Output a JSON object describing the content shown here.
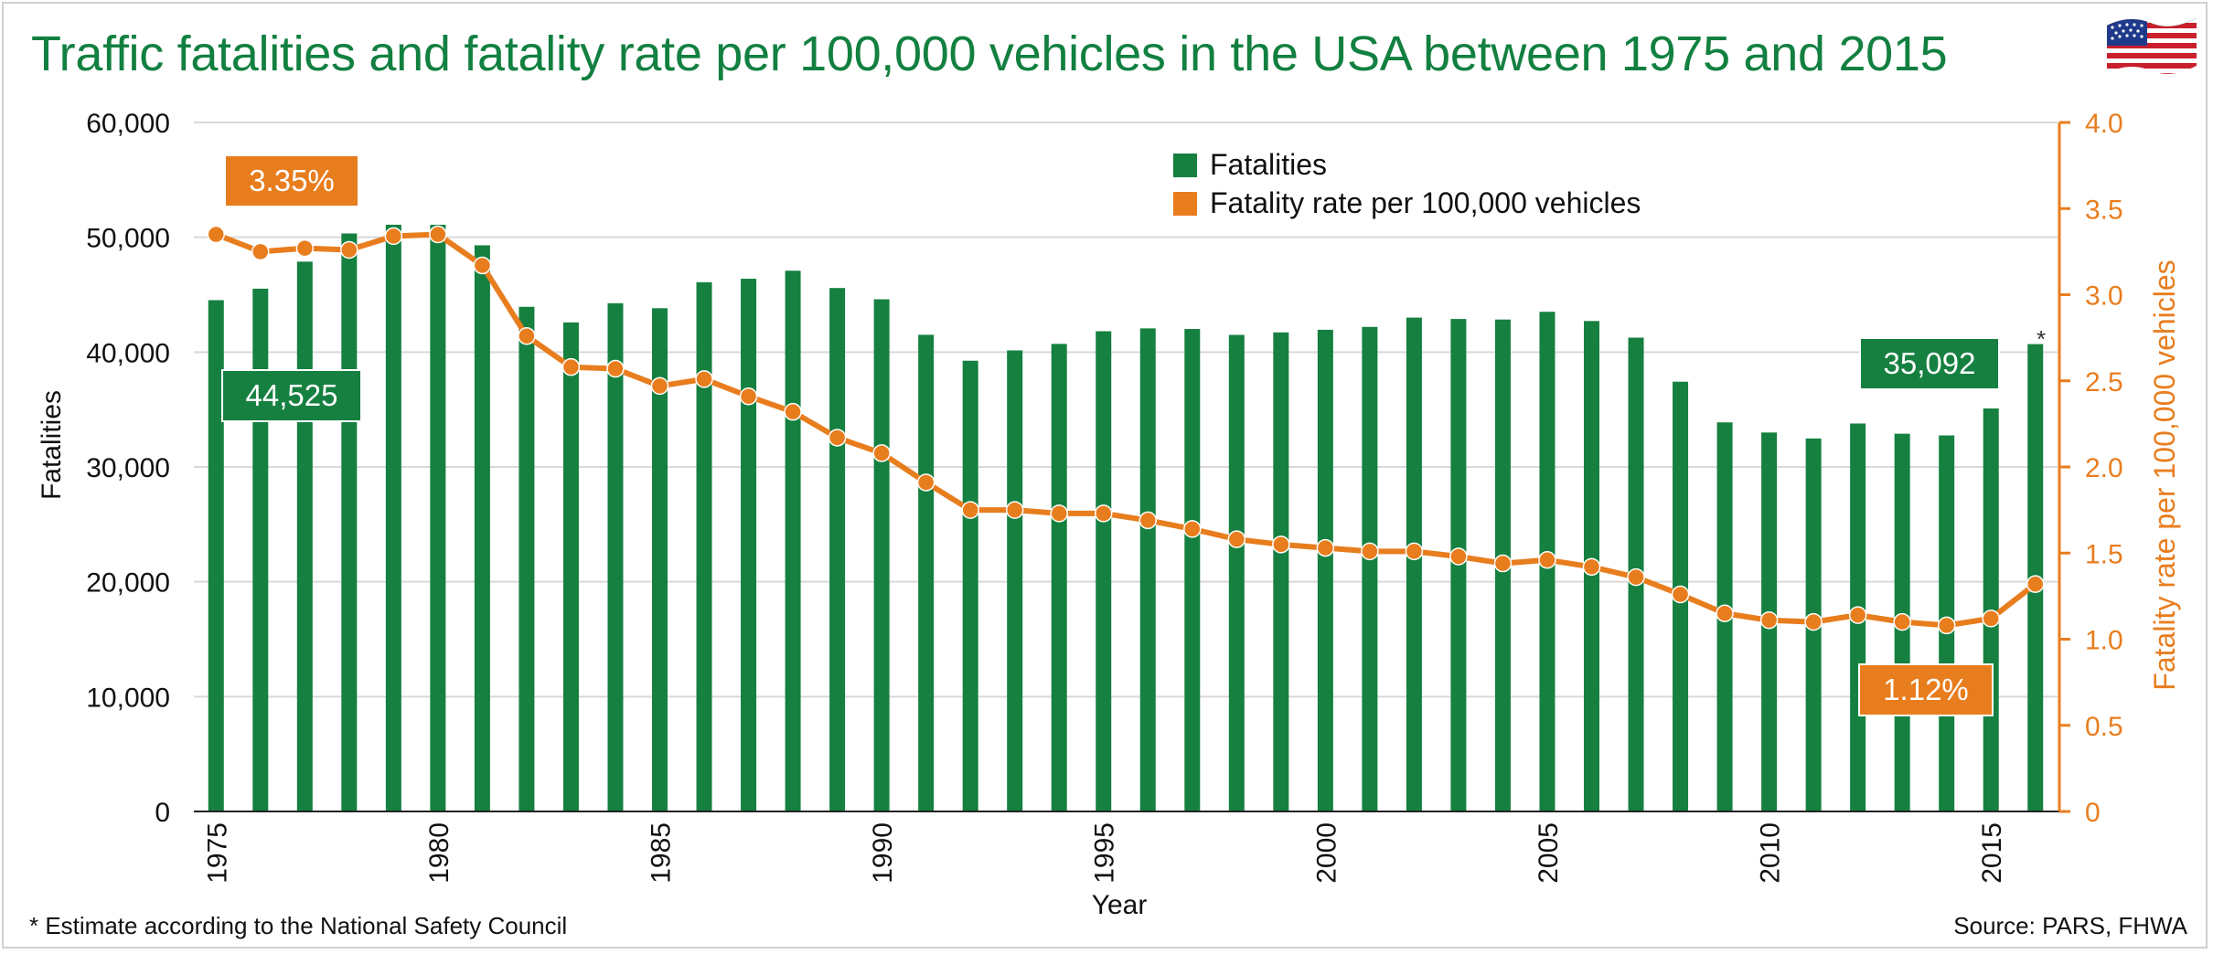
{
  "chart_data": {
    "type": "bar",
    "title": "Traffic fatalities and fatality rate per 100,000 vehicles in the USA between 1975 and 2015",
    "xlabel": "Year",
    "ylabel": "Fatalities",
    "y2label": "Fatality rate per 100,000 vehicles",
    "ylim": [
      0,
      60000
    ],
    "y2lim": [
      0,
      4.0
    ],
    "yticks": [
      0,
      10000,
      20000,
      30000,
      40000,
      50000,
      60000
    ],
    "ytick_labels": [
      "0",
      "10,000",
      "20,000",
      "30,000",
      "40,000",
      "50,000",
      "60,000"
    ],
    "y2ticks": [
      0,
      0.5,
      1.0,
      1.5,
      2.0,
      2.5,
      3.0,
      3.5,
      4.0
    ],
    "y2tick_labels": [
      "0",
      "0.5",
      "1.0",
      "1.5",
      "2.0",
      "2.5",
      "3.0",
      "3.5",
      "4.0"
    ],
    "categories": [
      1975,
      1976,
      1977,
      1978,
      1979,
      1980,
      1981,
      1982,
      1983,
      1984,
      1985,
      1986,
      1987,
      1988,
      1989,
      1990,
      1991,
      1992,
      1993,
      1994,
      1995,
      1996,
      1997,
      1998,
      1999,
      2000,
      2001,
      2002,
      2003,
      2004,
      2005,
      2006,
      2007,
      2008,
      2009,
      2010,
      2011,
      2012,
      2013,
      2014,
      2015,
      2016
    ],
    "xtick_labels": [
      "1975",
      "1980",
      "1985",
      "1990",
      "1995",
      "2000",
      "2005",
      "2010",
      "2015"
    ],
    "series": [
      {
        "name": "Fatalities",
        "type": "bar",
        "axis": "left",
        "color": "#158040",
        "values": [
          44525,
          45523,
          47878,
          50331,
          51093,
          51091,
          49301,
          43945,
          42589,
          44257,
          43825,
          46087,
          46390,
          47087,
          45582,
          44599,
          41508,
          39250,
          40150,
          40716,
          41817,
          42065,
          42013,
          41501,
          41717,
          41945,
          42196,
          43005,
          42884,
          42836,
          43510,
          42708,
          41259,
          37423,
          33883,
          32999,
          32479,
          33782,
          32894,
          32744,
          35092,
          40700
        ]
      },
      {
        "name": "Fatality rate per 100,000 vehicles",
        "type": "line",
        "axis": "right",
        "color": "#e87d1e",
        "values": [
          3.35,
          3.25,
          3.27,
          3.26,
          3.34,
          3.35,
          3.17,
          2.76,
          2.58,
          2.57,
          2.47,
          2.51,
          2.41,
          2.32,
          2.17,
          2.08,
          1.91,
          1.75,
          1.75,
          1.73,
          1.73,
          1.69,
          1.64,
          1.58,
          1.55,
          1.53,
          1.51,
          1.51,
          1.48,
          1.44,
          1.46,
          1.42,
          1.36,
          1.26,
          1.15,
          1.11,
          1.1,
          1.14,
          1.1,
          1.08,
          1.12,
          1.32
        ]
      }
    ],
    "legend": {
      "position": "top-center"
    },
    "callouts": [
      {
        "text": "3.35%",
        "color": "#e87d1e",
        "refers_to": "1975 rate"
      },
      {
        "text": "44,525",
        "color": "#158040",
        "refers_to": "1975 fatalities"
      },
      {
        "text": "35,092",
        "color": "#158040",
        "refers_to": "2015 fatalities"
      },
      {
        "text": "1.12%",
        "color": "#e87d1e",
        "refers_to": "2015 rate"
      }
    ],
    "estimate_marker": "*",
    "grid": true
  },
  "footer": {
    "note": "* Estimate according to the National Safety Council",
    "source": "Source: PARS, FHWA"
  },
  "colors": {
    "title": "#128040",
    "bar": "#158040",
    "line": "#e87d1e",
    "grid": "#d9d9d9"
  },
  "icons": {
    "flag": "us-flag-icon"
  }
}
